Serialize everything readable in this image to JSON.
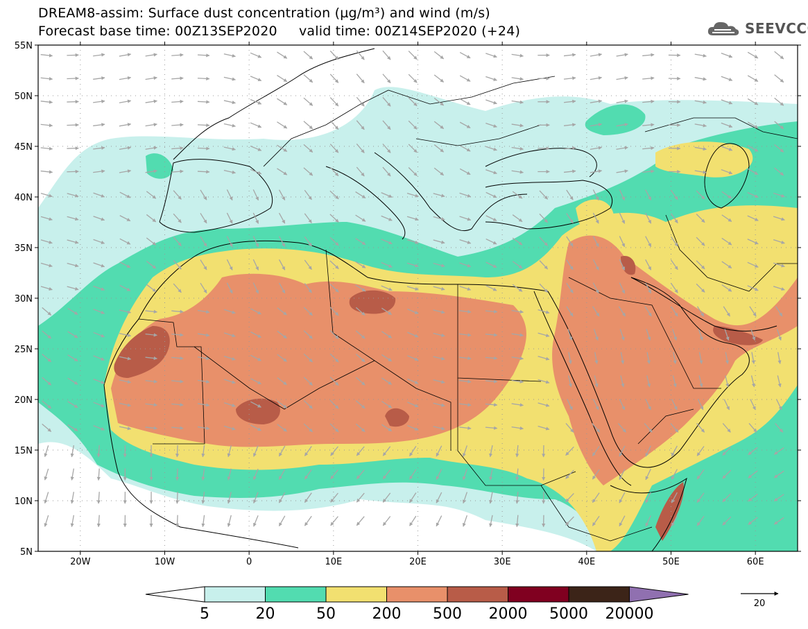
{
  "title": {
    "line1": "DREAM8-assim: Surface dust concentration (µg/m³) and wind (m/s)",
    "line2": "Forecast base time: 00Z13SEP2020     valid time: 00Z14SEP2020 (+24)"
  },
  "logo": {
    "text": "SEEVCCC",
    "icon": "cloud-logo-icon"
  },
  "axes": {
    "lon_range": [
      -25,
      65
    ],
    "lat_range": [
      5,
      55
    ],
    "lat_ticks": [
      "5N",
      "10N",
      "15N",
      "20N",
      "25N",
      "30N",
      "35N",
      "40N",
      "45N",
      "50N",
      "55N"
    ],
    "lat_values": [
      5,
      10,
      15,
      20,
      25,
      30,
      35,
      40,
      45,
      50,
      55
    ],
    "lon_ticks": [
      "20W",
      "10W",
      "0",
      "10E",
      "20E",
      "30E",
      "40E",
      "50E",
      "60E"
    ],
    "lon_values": [
      -20,
      -10,
      0,
      10,
      20,
      30,
      40,
      50,
      60
    ]
  },
  "colorbar": {
    "labels": [
      "5",
      "20",
      "50",
      "200",
      "500",
      "2000",
      "5000",
      "20000"
    ],
    "colors": [
      "#c8f0ec",
      "#52dcb0",
      "#f2e070",
      "#e8906a",
      "#b85c48",
      "#800020",
      "#3c2418"
    ],
    "under_color": "#ffffff",
    "over_color": "#9070b0"
  },
  "wind_reference": {
    "value": "20"
  },
  "legend_colors": {
    "land_border": "#000000",
    "wind_arrow": "#a6a6a6",
    "grid_dot": "#999999"
  }
}
